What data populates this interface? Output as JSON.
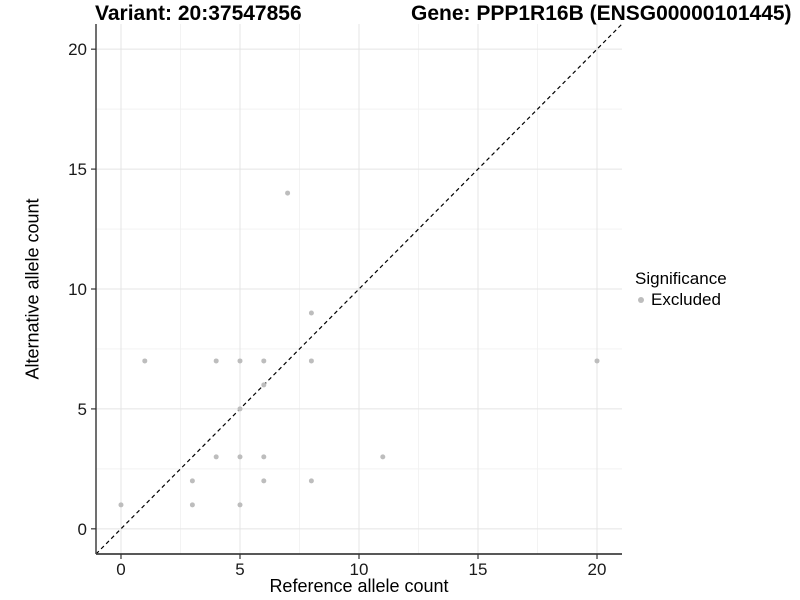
{
  "header": {
    "variant_title": "Variant: 20:37547856",
    "gene_title": "Gene: PPP1R16B (ENSG00000101445)"
  },
  "chart_data": {
    "type": "scatter",
    "title_left": "Variant: 20:37547856",
    "title_right": "Gene: PPP1R16B (ENSG00000101445)",
    "xlabel": "Reference allele count",
    "ylabel": "Alternative allele count",
    "xlim": [
      -1.05,
      21.05
    ],
    "ylim": [
      -1.05,
      21.05
    ],
    "x_ticks": [
      0,
      5,
      10,
      15,
      20
    ],
    "y_ticks": [
      0,
      5,
      10,
      15,
      20
    ],
    "minor_breaks": [
      2.5,
      7.5,
      12.5,
      17.5
    ],
    "grid": true,
    "identity_line": {
      "type": "y=x",
      "style": "dashed"
    },
    "series": [
      {
        "name": "Excluded",
        "points": [
          [
            0,
            1
          ],
          [
            1,
            7
          ],
          [
            3,
            1
          ],
          [
            3,
            2
          ],
          [
            4,
            3
          ],
          [
            4,
            7
          ],
          [
            5,
            1
          ],
          [
            5,
            3
          ],
          [
            5,
            5
          ],
          [
            5,
            7
          ],
          [
            6,
            2
          ],
          [
            6,
            3
          ],
          [
            6,
            6
          ],
          [
            6,
            7
          ],
          [
            7,
            14
          ],
          [
            8,
            2
          ],
          [
            8,
            7
          ],
          [
            8,
            9
          ],
          [
            11,
            3
          ],
          [
            20,
            7
          ]
        ]
      }
    ],
    "legend_position": "right"
  },
  "legend": {
    "title": "Significance",
    "items": [
      {
        "label": "Excluded",
        "color": "#bdbdbd"
      }
    ]
  },
  "colors": {
    "point": "#bdbdbd",
    "grid_major": "#e4e4e4",
    "grid_minor": "#f2f2f2",
    "axis_line": "#404040",
    "tick_mark": "#333333",
    "tick_label": "#1a1a1a",
    "identity_line": "#000000",
    "background": "#ffffff"
  }
}
